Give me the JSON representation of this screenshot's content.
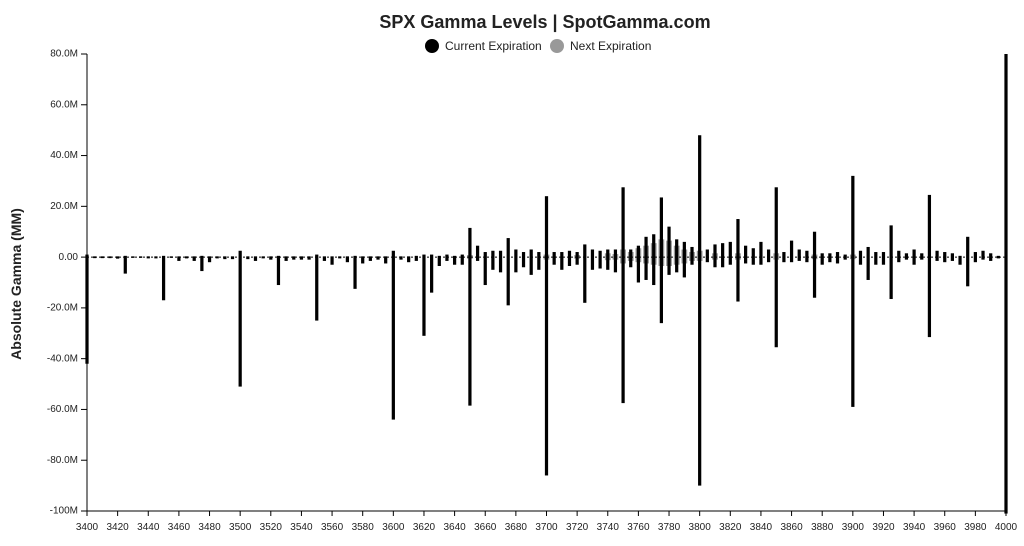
{
  "colors": {
    "current": "#000000",
    "next": "#999999",
    "axis": "#000000",
    "text": "#222222"
  },
  "chart_data": {
    "type": "bar",
    "title": "SPX Gamma Levels | SpotGamma.com",
    "ylabel": "Absolute Gamma (MM)",
    "xlabel": "",
    "legend_position": "top-center",
    "grid": false,
    "xlim": [
      3400,
      4000
    ],
    "ylim": [
      -100,
      80
    ],
    "x_ticks": [
      "3400",
      "3420",
      "3440",
      "3460",
      "3480",
      "3500",
      "3520",
      "3540",
      "3560",
      "3580",
      "3600",
      "3620",
      "3640",
      "3660",
      "3680",
      "3700",
      "3720",
      "3740",
      "3760",
      "3780",
      "3800",
      "3820",
      "3840",
      "3860",
      "3880",
      "3900",
      "3920",
      "3940",
      "3960",
      "3980",
      "4000"
    ],
    "y_ticks": [
      "80.0M",
      "60.0M",
      "40.0M",
      "20.0M",
      "0.00",
      "-20.0M",
      "-40.0M",
      "-60.0M",
      "-80.0M",
      "-100M"
    ],
    "y_tick_values": [
      80,
      60,
      40,
      20,
      0,
      -20,
      -40,
      -60,
      -80,
      -100
    ],
    "series": [
      {
        "name": "Current Expiration",
        "color": "#000000",
        "points": [
          [
            3400,
            1,
            -42
          ],
          [
            3405,
            0.3,
            -0.4
          ],
          [
            3410,
            0.3,
            -0.4
          ],
          [
            3415,
            0.3,
            -0.4
          ],
          [
            3420,
            0.3,
            -0.6
          ],
          [
            3425,
            0.5,
            -6.5
          ],
          [
            3430,
            0.3,
            -0.3
          ],
          [
            3435,
            0.3,
            -0.3
          ],
          [
            3440,
            0.3,
            -0.5
          ],
          [
            3445,
            0.3,
            -0.5
          ],
          [
            3450,
            0.5,
            -17
          ],
          [
            3455,
            0.3,
            -0.3
          ],
          [
            3460,
            0.3,
            -1.5
          ],
          [
            3465,
            0.3,
            -0.5
          ],
          [
            3470,
            0.3,
            -1.5
          ],
          [
            3475,
            0.5,
            -5.5
          ],
          [
            3480,
            0.3,
            -2
          ],
          [
            3485,
            0.3,
            -0.5
          ],
          [
            3490,
            0.3,
            -0.8
          ],
          [
            3495,
            0.3,
            -0.8
          ],
          [
            3500,
            2.5,
            -51
          ],
          [
            3505,
            0.3,
            -0.8
          ],
          [
            3510,
            0.3,
            -1.5
          ],
          [
            3515,
            0.3,
            -0.5
          ],
          [
            3520,
            0.3,
            -1
          ],
          [
            3525,
            0.5,
            -11
          ],
          [
            3530,
            0.3,
            -1.5
          ],
          [
            3535,
            0.3,
            -1
          ],
          [
            3540,
            0.3,
            -1
          ],
          [
            3545,
            0.3,
            -1
          ],
          [
            3550,
            1,
            -25
          ],
          [
            3555,
            0.3,
            -1.5
          ],
          [
            3560,
            0.3,
            -3
          ],
          [
            3565,
            0.3,
            -0.5
          ],
          [
            3570,
            0.3,
            -2
          ],
          [
            3575,
            0.5,
            -12.5
          ],
          [
            3580,
            0.3,
            -2.5
          ],
          [
            3585,
            0.3,
            -1.5
          ],
          [
            3590,
            0.3,
            -1
          ],
          [
            3595,
            0.3,
            -2.5
          ],
          [
            3600,
            2.5,
            -64
          ],
          [
            3605,
            0.3,
            -1
          ],
          [
            3610,
            0.3,
            -2
          ],
          [
            3615,
            0.5,
            -1.5
          ],
          [
            3620,
            1,
            -31
          ],
          [
            3625,
            1,
            -14
          ],
          [
            3630,
            0.5,
            -3.5
          ],
          [
            3635,
            1,
            -1.5
          ],
          [
            3640,
            0.5,
            -3
          ],
          [
            3645,
            1,
            -3
          ],
          [
            3650,
            11.5,
            -58.5
          ],
          [
            3655,
            4.5,
            -1.5
          ],
          [
            3660,
            2,
            -11
          ],
          [
            3665,
            2.5,
            -5
          ],
          [
            3670,
            2.5,
            -6
          ],
          [
            3675,
            7.5,
            -19
          ],
          [
            3680,
            3,
            -6
          ],
          [
            3685,
            2,
            -4
          ],
          [
            3690,
            3,
            -7
          ],
          [
            3695,
            2,
            -5
          ],
          [
            3700,
            24,
            -86
          ],
          [
            3705,
            2,
            -3
          ],
          [
            3710,
            2,
            -5
          ],
          [
            3715,
            2.5,
            -3.5
          ],
          [
            3720,
            2,
            -3
          ],
          [
            3725,
            5,
            -18
          ],
          [
            3730,
            3,
            -5
          ],
          [
            3735,
            2.5,
            -4.5
          ],
          [
            3740,
            3,
            -5
          ],
          [
            3745,
            3,
            -6
          ],
          [
            3750,
            27.5,
            -57.5
          ],
          [
            3755,
            3,
            -4
          ],
          [
            3760,
            4.5,
            -10
          ],
          [
            3765,
            8,
            -9
          ],
          [
            3770,
            9,
            -11
          ],
          [
            3775,
            23.5,
            -26
          ],
          [
            3780,
            12,
            -7
          ],
          [
            3785,
            7,
            -6
          ],
          [
            3790,
            6,
            -8
          ],
          [
            3795,
            4,
            -3
          ],
          [
            3800,
            48,
            -90
          ],
          [
            3805,
            3,
            -2
          ],
          [
            3810,
            5,
            -4
          ],
          [
            3815,
            5.5,
            -4
          ],
          [
            3820,
            6,
            -3
          ],
          [
            3825,
            15,
            -17.5
          ],
          [
            3830,
            4.5,
            -2.5
          ],
          [
            3835,
            3.5,
            -3
          ],
          [
            3840,
            6,
            -3
          ],
          [
            3845,
            3,
            -2
          ],
          [
            3850,
            27.5,
            -35.5
          ],
          [
            3855,
            2,
            -2
          ],
          [
            3860,
            6.5,
            -2
          ],
          [
            3865,
            3,
            -1.5
          ],
          [
            3870,
            2.5,
            -2
          ],
          [
            3875,
            10,
            -16
          ],
          [
            3880,
            1.5,
            -3
          ],
          [
            3885,
            1.5,
            -2
          ],
          [
            3890,
            2,
            -2.5
          ],
          [
            3895,
            1,
            -1
          ],
          [
            3900,
            32,
            -59
          ],
          [
            3905,
            2.5,
            -3
          ],
          [
            3910,
            4,
            -9
          ],
          [
            3915,
            2,
            -3
          ],
          [
            3920,
            2,
            -3
          ],
          [
            3925,
            12.5,
            -16.5
          ],
          [
            3930,
            2.5,
            -2
          ],
          [
            3935,
            1.5,
            -1
          ],
          [
            3940,
            3,
            -3
          ],
          [
            3945,
            1.5,
            -1
          ],
          [
            3950,
            24.5,
            -31.5
          ],
          [
            3955,
            2.5,
            -1.5
          ],
          [
            3960,
            2,
            -2
          ],
          [
            3965,
            1.5,
            -1.5
          ],
          [
            3970,
            0.5,
            -3
          ],
          [
            3975,
            8,
            -11.5
          ],
          [
            3980,
            2,
            -2
          ],
          [
            3985,
            2.5,
            -1
          ],
          [
            3990,
            1.5,
            -1.5
          ],
          [
            3995,
            0.5,
            -0.5
          ],
          [
            4000,
            80,
            -101
          ]
        ]
      },
      {
        "name": "Next Expiration",
        "color": "#999999",
        "points": [
          [
            3650,
            0.8,
            -0.6
          ],
          [
            3700,
            1.0,
            -1.0
          ],
          [
            3720,
            0.8,
            -0.6
          ],
          [
            3740,
            1.5,
            -1.2
          ],
          [
            3745,
            1.2,
            -1.0
          ],
          [
            3750,
            3.0,
            -2.5
          ],
          [
            3755,
            2.0,
            -1.5
          ],
          [
            3760,
            3.5,
            -2.0
          ],
          [
            3765,
            4.5,
            -2.5
          ],
          [
            3770,
            5.5,
            -3.0
          ],
          [
            3775,
            7.0,
            -3.5
          ],
          [
            3780,
            6.5,
            -3.5
          ],
          [
            3785,
            4.5,
            -3.0
          ],
          [
            3790,
            3.0,
            -2.5
          ],
          [
            3795,
            2.0,
            -1.5
          ],
          [
            3800,
            2.5,
            -1.5
          ],
          [
            3810,
            1.5,
            -1.0
          ],
          [
            3825,
            1.5,
            -1.0
          ],
          [
            3850,
            1.5,
            -1.0
          ],
          [
            3875,
            1.0,
            -0.8
          ],
          [
            3900,
            1.0,
            -0.8
          ]
        ]
      }
    ]
  }
}
